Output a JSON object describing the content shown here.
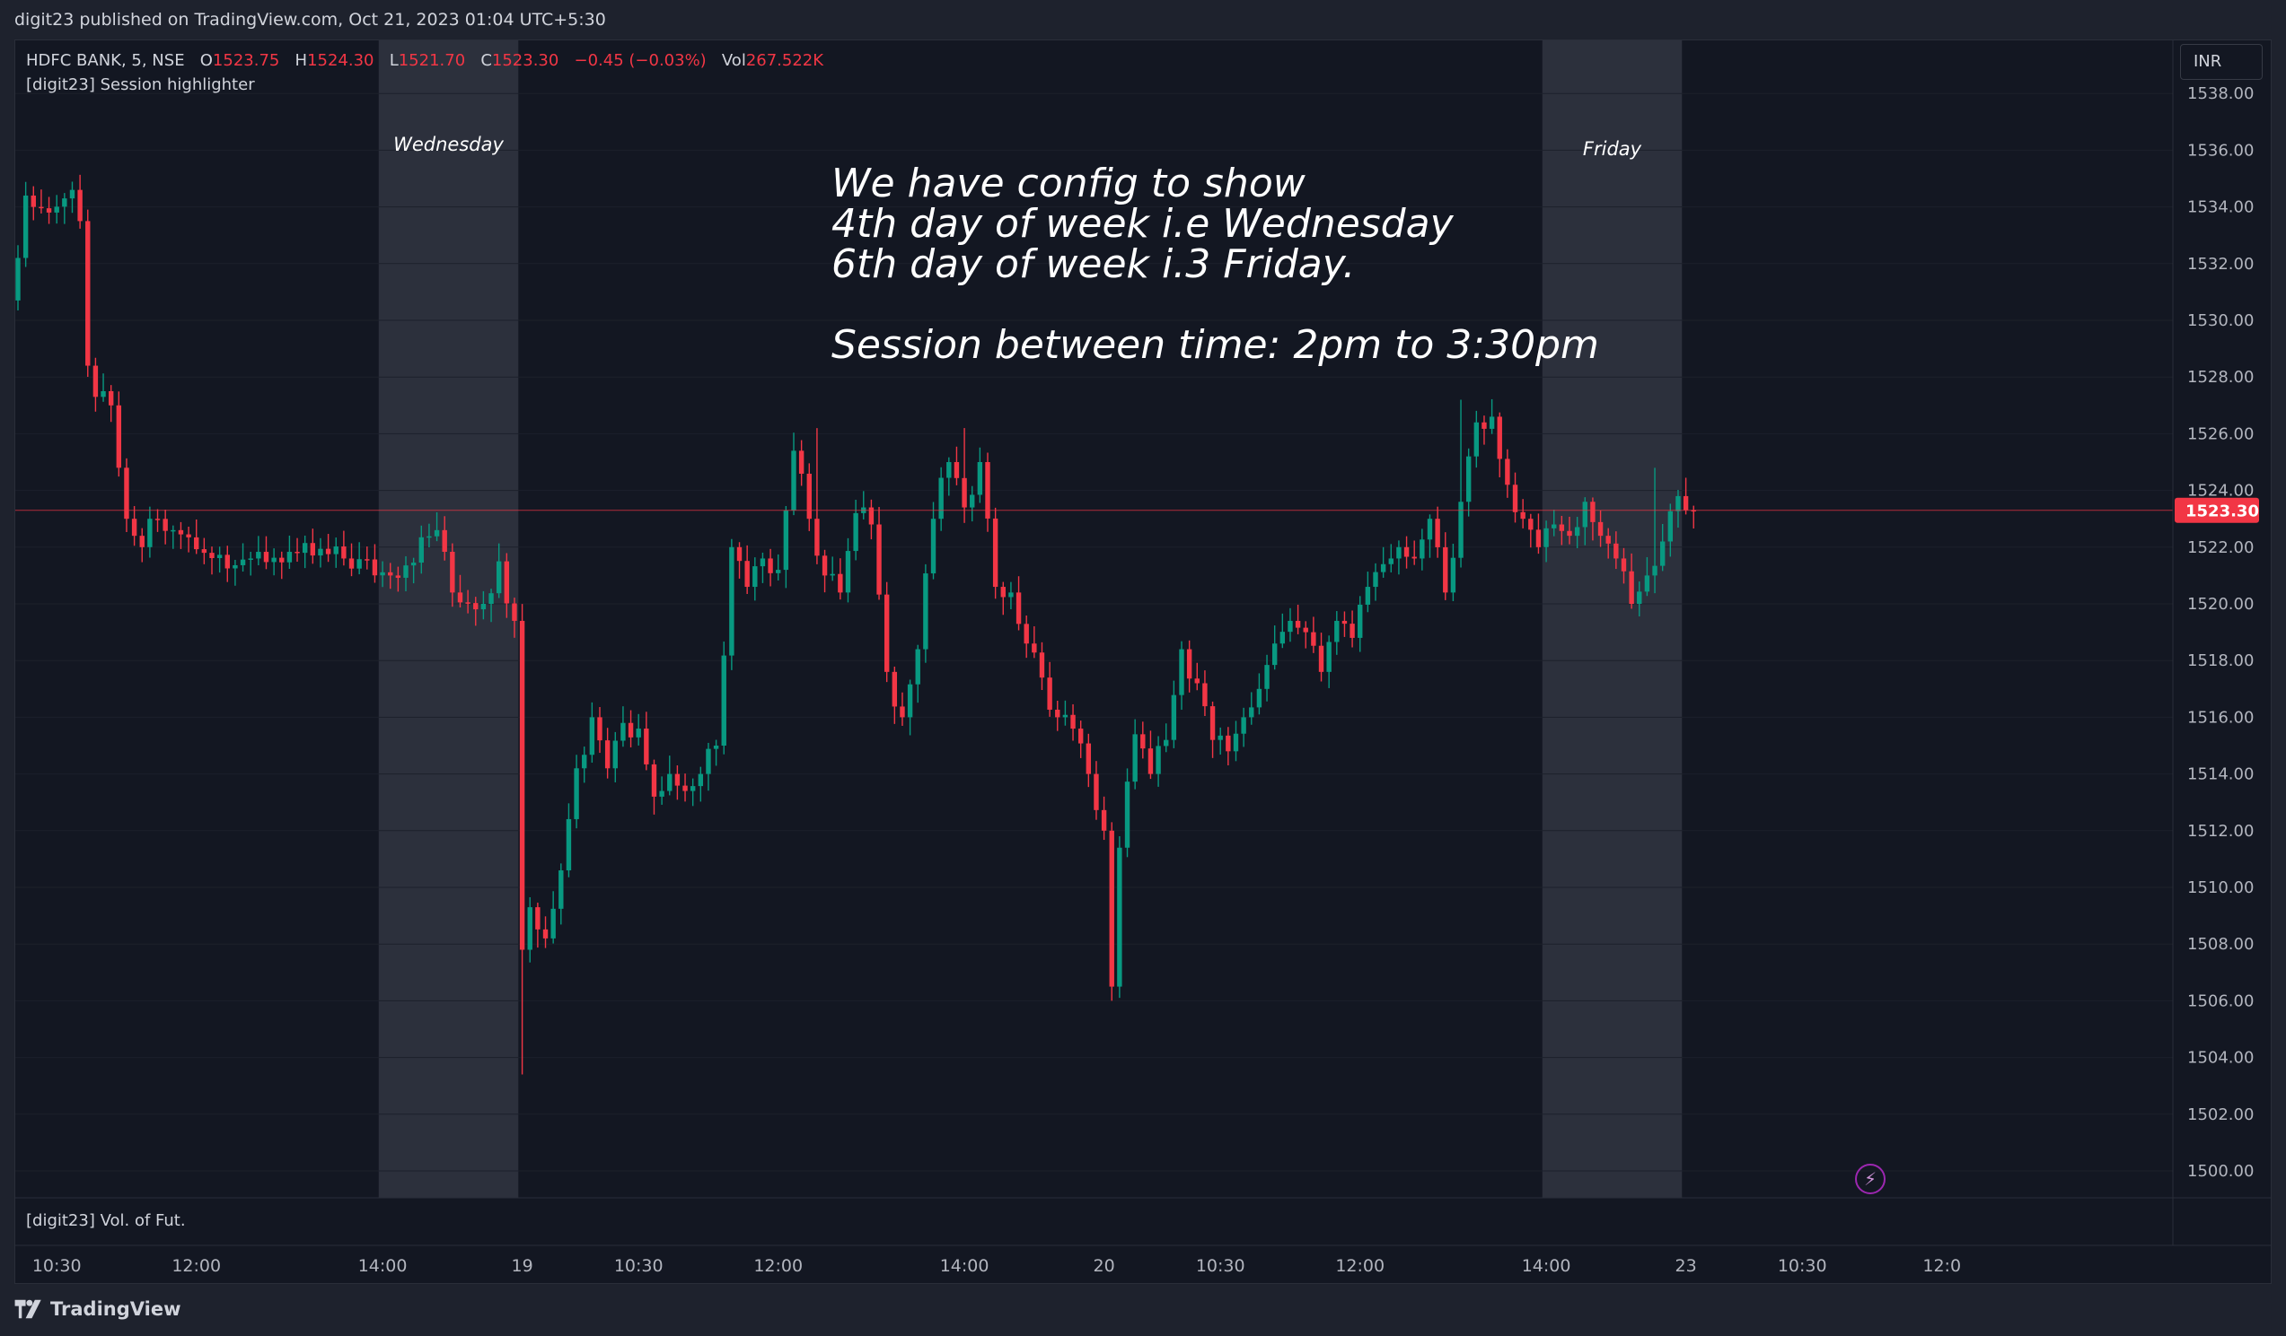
{
  "header": {
    "published": "digit23 published on TradingView.com, Oct 21, 2023 01:04 UTC+5:30"
  },
  "legend": {
    "symbol": "HDFC BANK, 5, NSE",
    "o_label": "O",
    "o": "1523.75",
    "h_label": "H",
    "h": "1524.30",
    "l_label": "L",
    "l": "1521.70",
    "c_label": "C",
    "c": "1523.30",
    "change": "−0.45 (−0.03%)",
    "vol_label": "Vol",
    "vol": "267.522K",
    "indicator": "[digit23] Session highlighter"
  },
  "volume_pane": {
    "label": "[digit23] Vol. of Fut."
  },
  "currency": "INR",
  "annotation": "We have config to show\n4th day of week i.e Wednesday\n6th day of week i.3 Friday.\n\nSession between time: 2pm to 3:30pm",
  "footer": {
    "brand": "TradingView"
  },
  "colors": {
    "up": "#089981",
    "down": "#f23645",
    "session": "#363a45",
    "background": "#131722",
    "price_line": "#f23645"
  },
  "icons": {
    "bolt": "lightning-icon",
    "logo": "tradingview-logo-icon"
  },
  "chart_data": {
    "type": "candlestick",
    "symbol": "HDFC BANK",
    "interval": "5",
    "exchange": "NSE",
    "ylim": [
      1499,
      1539
    ],
    "y_ticks": [
      1500,
      1502,
      1504,
      1506,
      1508,
      1510,
      1512,
      1514,
      1516,
      1518,
      1520,
      1522,
      1524,
      1526,
      1528,
      1530,
      1532,
      1534,
      1536,
      1538
    ],
    "y_tick_labels": [
      "1500.00",
      "1502.00",
      "1504.00",
      "1506.00",
      "1508.00",
      "1510.00",
      "1512.00",
      "1514.00",
      "1516.00",
      "1518.00",
      "1520.00",
      "1522.00",
      "1524.00",
      "1526.00",
      "1528.00",
      "1530.00",
      "1532.00",
      "1534.00",
      "1536.00",
      "1538.00"
    ],
    "x_ticks": [
      {
        "label": "10:30",
        "bar": 5
      },
      {
        "label": "12:00",
        "bar": 23
      },
      {
        "label": "14:00",
        "bar": 47
      },
      {
        "label": "19",
        "bar": 65
      },
      {
        "label": "10:30",
        "bar": 80
      },
      {
        "label": "12:00",
        "bar": 98
      },
      {
        "label": "14:00",
        "bar": 122
      },
      {
        "label": "20",
        "bar": 140
      },
      {
        "label": "10:30",
        "bar": 155
      },
      {
        "label": "12:00",
        "bar": 173
      },
      {
        "label": "14:00",
        "bar": 197
      },
      {
        "label": "23",
        "bar": 215
      },
      {
        "label": "10:30",
        "bar": 230
      },
      {
        "label": "12:0",
        "bar": 248
      }
    ],
    "last_price": 1523.3,
    "last_price_label": "1523.30",
    "sessions": [
      {
        "label": "Wednesday",
        "start_bar": 47,
        "end_bar": 64
      },
      {
        "label": "Friday",
        "start_bar": 197,
        "end_bar": 214
      }
    ],
    "close_anchors": [
      [
        0,
        1532.2
      ],
      [
        1,
        1534.4
      ],
      [
        2,
        1534.0
      ],
      [
        4,
        1533.8
      ],
      [
        6,
        1534.3
      ],
      [
        7,
        1534.6
      ],
      [
        8,
        1533.5
      ],
      [
        9,
        1528.4
      ],
      [
        10,
        1527.3
      ],
      [
        11,
        1527.5
      ],
      [
        12,
        1527.0
      ],
      [
        13,
        1524.8
      ],
      [
        14,
        1523.0
      ],
      [
        15,
        1522.4
      ],
      [
        16,
        1522.0
      ],
      [
        17,
        1523.0
      ],
      [
        20,
        1522.6
      ],
      [
        24,
        1521.8
      ],
      [
        30,
        1521.6
      ],
      [
        36,
        1521.8
      ],
      [
        42,
        1521.6
      ],
      [
        48,
        1521.0
      ],
      [
        54,
        1522.6
      ],
      [
        56,
        1520.4
      ],
      [
        60,
        1520.0
      ],
      [
        62,
        1521.5
      ],
      [
        64,
        1519.4
      ],
      [
        65,
        1507.8
      ],
      [
        66,
        1509.3
      ],
      [
        68,
        1508.2
      ],
      [
        70,
        1510.6
      ],
      [
        72,
        1514.2
      ],
      [
        74,
        1516.0
      ],
      [
        76,
        1514.2
      ],
      [
        78,
        1515.8
      ],
      [
        80,
        1515.6
      ],
      [
        82,
        1513.2
      ],
      [
        84,
        1514.0
      ],
      [
        86,
        1513.4
      ],
      [
        88,
        1514.0
      ],
      [
        90,
        1515.0
      ],
      [
        92,
        1522.0
      ],
      [
        94,
        1520.6
      ],
      [
        96,
        1521.6
      ],
      [
        98,
        1521.2
      ],
      [
        100,
        1525.4
      ],
      [
        102,
        1523.0
      ],
      [
        104,
        1521.0
      ],
      [
        106,
        1520.4
      ],
      [
        108,
        1523.2
      ],
      [
        110,
        1522.8
      ],
      [
        112,
        1517.6
      ],
      [
        114,
        1516.0
      ],
      [
        116,
        1518.4
      ],
      [
        118,
        1523.0
      ],
      [
        120,
        1525.0
      ],
      [
        122,
        1523.4
      ],
      [
        124,
        1525.0
      ],
      [
        126,
        1520.6
      ],
      [
        128,
        1520.4
      ],
      [
        130,
        1518.6
      ],
      [
        132,
        1517.4
      ],
      [
        134,
        1516.0
      ],
      [
        136,
        1515.6
      ],
      [
        138,
        1514.0
      ],
      [
        140,
        1512.0
      ],
      [
        141,
        1506.5
      ],
      [
        142,
        1511.4
      ],
      [
        144,
        1515.4
      ],
      [
        146,
        1514.0
      ],
      [
        148,
        1515.2
      ],
      [
        150,
        1518.4
      ],
      [
        152,
        1517.2
      ],
      [
        154,
        1515.2
      ],
      [
        156,
        1514.8
      ],
      [
        158,
        1516.0
      ],
      [
        160,
        1517.0
      ],
      [
        162,
        1518.6
      ],
      [
        164,
        1519.4
      ],
      [
        166,
        1519.0
      ],
      [
        168,
        1517.6
      ],
      [
        170,
        1519.4
      ],
      [
        172,
        1518.8
      ],
      [
        174,
        1520.6
      ],
      [
        176,
        1521.4
      ],
      [
        178,
        1522.0
      ],
      [
        180,
        1521.6
      ],
      [
        182,
        1523.0
      ],
      [
        184,
        1520.4
      ],
      [
        186,
        1523.6
      ],
      [
        188,
        1526.4
      ],
      [
        190,
        1526.6
      ],
      [
        192,
        1524.2
      ],
      [
        194,
        1523.0
      ],
      [
        196,
        1522.0
      ],
      [
        198,
        1522.8
      ],
      [
        200,
        1522.4
      ],
      [
        202,
        1523.6
      ],
      [
        204,
        1522.4
      ],
      [
        206,
        1521.6
      ],
      [
        208,
        1520.0
      ],
      [
        210,
        1521.0
      ],
      [
        212,
        1522.2
      ],
      [
        214,
        1523.8
      ],
      [
        216,
        1523.3
      ]
    ],
    "extra_wicks": [
      [
        65,
        1503.4
      ],
      [
        141,
        1506.5
      ],
      [
        186,
        1527.2
      ],
      [
        211,
        1524.8
      ],
      [
        122,
        1526.2
      ],
      [
        103,
        1526.2
      ]
    ],
    "volume_pane_label": "[digit23] Vol. of Fut."
  }
}
